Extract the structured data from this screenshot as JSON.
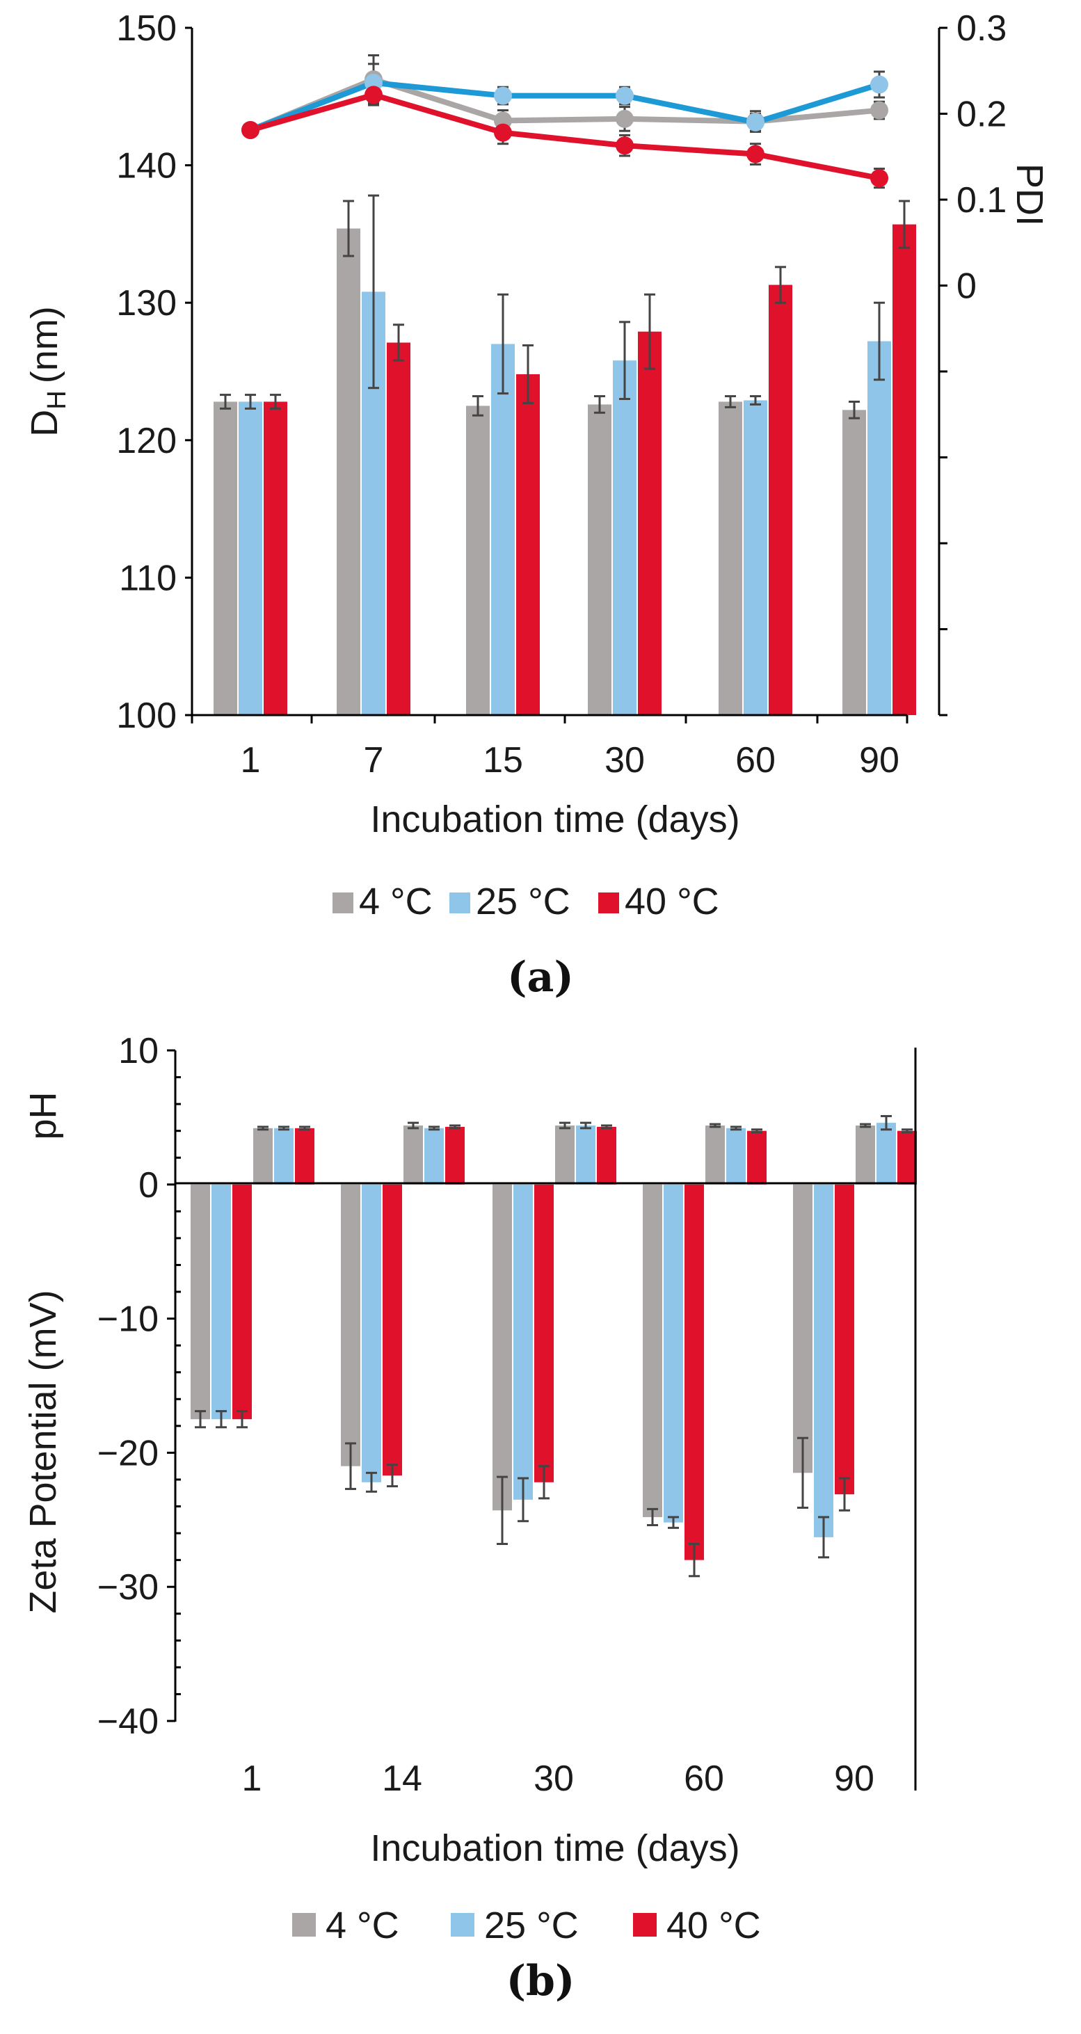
{
  "chart_data": [
    {
      "type": "bar",
      "caption": "(a)",
      "title": "",
      "xlabel": "Incubation time (days)",
      "ylabel_main": "D",
      "ylabel_sub": "H",
      "ylabel_unit": "(nm)",
      "ylabel_right": "PDI",
      "categories": [
        "1",
        "7",
        "15",
        "30",
        "60",
        "90"
      ],
      "ylim": [
        100,
        150
      ],
      "yticks": [
        "100",
        "110",
        "120",
        "130",
        "140",
        "150"
      ],
      "y2lim": [
        -0.5,
        0.3
      ],
      "y2ticks": [
        "0",
        "0.1",
        "0.2",
        "0.3"
      ],
      "series": [
        {
          "name": "4 °C",
          "legend": "4 °C",
          "color": "#aba6a6",
          "values": [
            122.8,
            135.4,
            122.5,
            122.6,
            122.8,
            122.2
          ],
          "errors": [
            0.5,
            2.0,
            0.7,
            0.6,
            0.4,
            0.6
          ]
        },
        {
          "name": "25 °C",
          "legend": "25 °C",
          "color": "#8ec5e8",
          "values": [
            122.8,
            130.8,
            127.0,
            125.8,
            122.9,
            127.2
          ],
          "errors": [
            0.5,
            7.0,
            3.6,
            2.8,
            0.3,
            2.8
          ]
        },
        {
          "name": "40 °C",
          "legend": "40 °C",
          "color": "#e0112b",
          "values": [
            122.8,
            127.1,
            124.8,
            127.9,
            131.3,
            135.7
          ],
          "errors": [
            0.5,
            1.3,
            2.1,
            2.7,
            1.3,
            1.7
          ]
        }
      ],
      "pdi_series": [
        {
          "name": "4 °C",
          "color": "#aba6a6",
          "values": [
            0.181,
            0.24,
            0.192,
            0.194,
            0.191,
            0.204
          ],
          "errors": [
            0.006,
            0.028,
            0.012,
            0.014,
            0.012,
            0.01
          ]
        },
        {
          "name": "25 °C",
          "color": "#1d9ad6",
          "values": [
            0.181,
            0.236,
            0.221,
            0.221,
            0.19,
            0.234
          ],
          "errors": [
            0.006,
            0.022,
            0.01,
            0.01,
            0.01,
            0.015
          ]
        },
        {
          "name": "40 °C",
          "color": "#e0112b",
          "values": [
            0.181,
            0.222,
            0.178,
            0.163,
            0.153,
            0.125
          ],
          "errors": [
            0.006,
            0.012,
            0.013,
            0.012,
            0.012,
            0.011
          ]
        }
      ],
      "legend_position": "bottom"
    },
    {
      "type": "bar",
      "caption": "(b)",
      "title": "",
      "xlabel": "Incubation time (days)",
      "ylabel": "Zeta Potential (mV)",
      "ylabel_ph": "pH",
      "categories": [
        "1",
        "14",
        "30",
        "60",
        "90"
      ],
      "ylim": [
        -40,
        10
      ],
      "yticks": [
        "-40",
        "-30",
        "-20",
        "-10",
        "0",
        "10"
      ],
      "zeta_series": [
        {
          "name": "4 °C",
          "legend": "4 °C",
          "color": "#aba6a6",
          "values": [
            -17.5,
            -21.0,
            -24.3,
            -24.8,
            -21.5
          ],
          "errors": [
            0.6,
            1.7,
            2.5,
            0.6,
            2.6
          ]
        },
        {
          "name": "25 °C",
          "legend": "25 °C",
          "color": "#8ec5e8",
          "values": [
            -17.5,
            -22.2,
            -23.5,
            -25.2,
            -26.3
          ],
          "errors": [
            0.6,
            0.7,
            1.6,
            0.4,
            1.5
          ]
        },
        {
          "name": "40 °C",
          "color": "#e0112b",
          "legend": "40 °C",
          "values": [
            -17.5,
            -21.7,
            -22.2,
            -28.0,
            -23.1
          ],
          "errors": [
            0.6,
            0.8,
            1.2,
            1.2,
            1.2
          ]
        }
      ],
      "ph_series": [
        {
          "name": "4 °C",
          "color": "#aba6a6",
          "values": [
            4.2,
            4.4,
            4.4,
            4.4,
            4.4
          ],
          "errors": [
            0.1,
            0.2,
            0.2,
            0.1,
            0.1
          ]
        },
        {
          "name": "25 °C",
          "color": "#8ec5e8",
          "values": [
            4.2,
            4.2,
            4.4,
            4.2,
            4.6
          ],
          "errors": [
            0.1,
            0.1,
            0.2,
            0.1,
            0.5
          ]
        },
        {
          "name": "40 °C",
          "color": "#e0112b",
          "values": [
            4.2,
            4.3,
            4.3,
            4.0,
            4.0
          ],
          "errors": [
            0.1,
            0.1,
            0.1,
            0.1,
            0.1
          ]
        }
      ],
      "legend_position": "bottom"
    }
  ]
}
